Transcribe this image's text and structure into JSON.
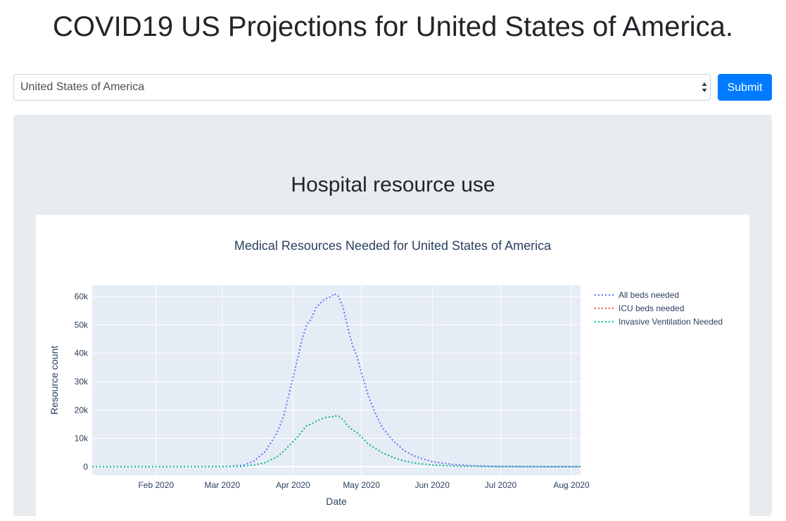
{
  "header": {
    "title": "COVID19 US Projections for United States of America."
  },
  "location_select": {
    "value": "United States of America"
  },
  "submit": {
    "label": "Submit"
  },
  "section": {
    "title": "Hospital resource use"
  },
  "colors": {
    "primary": "#007bff",
    "panel_bg": "#e9ecef",
    "plot_bg": "#e5ecf6",
    "all_beds": "#636efa",
    "icu_beds": "#ef553b",
    "ventilation": "#00cc96"
  },
  "chart_data": {
    "type": "line",
    "title": "Medical Resources Needed for United States of America",
    "xlabel": "Date",
    "ylabel": "Resource count",
    "xlim": [
      "2020-01-04",
      "2020-08-05"
    ],
    "ylim": [
      -3000,
      64000
    ],
    "x_ticks": [
      "2020-02-01",
      "2020-03-01",
      "2020-04-01",
      "2020-05-01",
      "2020-06-01",
      "2020-07-01",
      "2020-08-01"
    ],
    "x_tick_labels": [
      "Feb 2020",
      "Mar 2020",
      "Apr 2020",
      "May 2020",
      "Jun 2020",
      "Jul 2020",
      "Aug 2020"
    ],
    "y_ticks": [
      0,
      10000,
      20000,
      30000,
      40000,
      50000,
      60000
    ],
    "y_tick_labels": [
      "0",
      "10k",
      "20k",
      "30k",
      "40k",
      "50k",
      "60k"
    ],
    "grid": true,
    "legend_position": "top-right outside plot",
    "series": [
      {
        "name": "All beds needed",
        "color": "#636efa",
        "dash": "dot",
        "points": [
          [
            "2020-01-04",
            0
          ],
          [
            "2020-02-01",
            0
          ],
          [
            "2020-03-01",
            80
          ],
          [
            "2020-03-10",
            500
          ],
          [
            "2020-03-15",
            2000
          ],
          [
            "2020-03-20",
            5500
          ],
          [
            "2020-03-25",
            12000
          ],
          [
            "2020-03-28",
            18000
          ],
          [
            "2020-03-31",
            28000
          ],
          [
            "2020-04-03",
            38000
          ],
          [
            "2020-04-05",
            45000
          ],
          [
            "2020-04-07",
            50000
          ],
          [
            "2020-04-09",
            52000
          ],
          [
            "2020-04-11",
            56000
          ],
          [
            "2020-04-14",
            58500
          ],
          [
            "2020-04-16",
            59500
          ],
          [
            "2020-04-18",
            60000
          ],
          [
            "2020-04-19",
            61000
          ],
          [
            "2020-04-21",
            60000
          ],
          [
            "2020-04-23",
            56000
          ],
          [
            "2020-04-25",
            49000
          ],
          [
            "2020-04-27",
            43000
          ],
          [
            "2020-04-29",
            39000
          ],
          [
            "2020-05-01",
            33000
          ],
          [
            "2020-05-04",
            25000
          ],
          [
            "2020-05-07",
            19000
          ],
          [
            "2020-05-10",
            14000
          ],
          [
            "2020-05-15",
            9000
          ],
          [
            "2020-05-20",
            5500
          ],
          [
            "2020-05-25",
            3500
          ],
          [
            "2020-06-01",
            1800
          ],
          [
            "2020-06-10",
            800
          ],
          [
            "2020-06-20",
            300
          ],
          [
            "2020-07-01",
            100
          ],
          [
            "2020-08-05",
            0
          ]
        ]
      },
      {
        "name": "ICU beds needed",
        "color": "#ef553b",
        "dash": "dot",
        "points": [
          [
            "2020-01-04",
            0
          ],
          [
            "2020-02-01",
            0
          ],
          [
            "2020-03-01",
            20
          ],
          [
            "2020-03-10",
            150
          ],
          [
            "2020-03-15",
            600
          ],
          [
            "2020-03-20",
            1500
          ],
          [
            "2020-03-25",
            3500
          ],
          [
            "2020-03-28",
            5500
          ],
          [
            "2020-03-31",
            8000
          ],
          [
            "2020-04-03",
            10500
          ],
          [
            "2020-04-05",
            12500
          ],
          [
            "2020-04-07",
            14500
          ],
          [
            "2020-04-09",
            15000
          ],
          [
            "2020-04-11",
            16000
          ],
          [
            "2020-04-14",
            17000
          ],
          [
            "2020-04-16",
            17500
          ],
          [
            "2020-04-18",
            17500
          ],
          [
            "2020-04-19",
            18000
          ],
          [
            "2020-04-21",
            17800
          ],
          [
            "2020-04-23",
            16500
          ],
          [
            "2020-04-25",
            14500
          ],
          [
            "2020-04-27",
            13000
          ],
          [
            "2020-04-29",
            12000
          ],
          [
            "2020-05-01",
            10500
          ],
          [
            "2020-05-04",
            8000
          ],
          [
            "2020-05-07",
            6500
          ],
          [
            "2020-05-10",
            5000
          ],
          [
            "2020-05-15",
            3200
          ],
          [
            "2020-05-20",
            2000
          ],
          [
            "2020-05-25",
            1200
          ],
          [
            "2020-06-01",
            600
          ],
          [
            "2020-06-10",
            250
          ],
          [
            "2020-06-20",
            100
          ],
          [
            "2020-07-01",
            30
          ],
          [
            "2020-08-05",
            0
          ]
        ]
      },
      {
        "name": "Invasive Ventilation Needed",
        "color": "#00cc96",
        "dash": "dot",
        "points": [
          [
            "2020-01-04",
            0
          ],
          [
            "2020-02-01",
            0
          ],
          [
            "2020-03-01",
            20
          ],
          [
            "2020-03-10",
            150
          ],
          [
            "2020-03-15",
            600
          ],
          [
            "2020-03-20",
            1500
          ],
          [
            "2020-03-25",
            3500
          ],
          [
            "2020-03-28",
            5500
          ],
          [
            "2020-03-31",
            8000
          ],
          [
            "2020-04-03",
            10500
          ],
          [
            "2020-04-05",
            12500
          ],
          [
            "2020-04-07",
            14500
          ],
          [
            "2020-04-09",
            15000
          ],
          [
            "2020-04-11",
            16000
          ],
          [
            "2020-04-14",
            17000
          ],
          [
            "2020-04-16",
            17500
          ],
          [
            "2020-04-18",
            17500
          ],
          [
            "2020-04-19",
            18000
          ],
          [
            "2020-04-21",
            17800
          ],
          [
            "2020-04-23",
            16500
          ],
          [
            "2020-04-25",
            14500
          ],
          [
            "2020-04-27",
            13000
          ],
          [
            "2020-04-29",
            12000
          ],
          [
            "2020-05-01",
            10500
          ],
          [
            "2020-05-04",
            8000
          ],
          [
            "2020-05-07",
            6500
          ],
          [
            "2020-05-10",
            5000
          ],
          [
            "2020-05-15",
            3200
          ],
          [
            "2020-05-20",
            2000
          ],
          [
            "2020-05-25",
            1200
          ],
          [
            "2020-06-01",
            600
          ],
          [
            "2020-06-10",
            250
          ],
          [
            "2020-06-20",
            100
          ],
          [
            "2020-07-01",
            30
          ],
          [
            "2020-08-05",
            0
          ]
        ]
      }
    ]
  }
}
